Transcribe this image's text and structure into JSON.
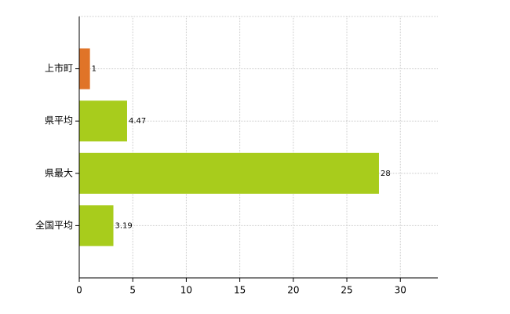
{
  "chart_data": {
    "type": "bar",
    "orientation": "horizontal",
    "categories": [
      "上市町",
      "県平均",
      "県最大",
      "全国平均"
    ],
    "values": [
      1,
      4.47,
      28,
      3.19
    ],
    "colors": [
      "#e07428",
      "#a8cc1c",
      "#a8cc1c",
      "#a8cc1c"
    ],
    "xlim": [
      0,
      33.5
    ],
    "xticks": [
      0,
      5,
      10,
      15,
      20,
      25,
      30
    ],
    "grid": true
  }
}
